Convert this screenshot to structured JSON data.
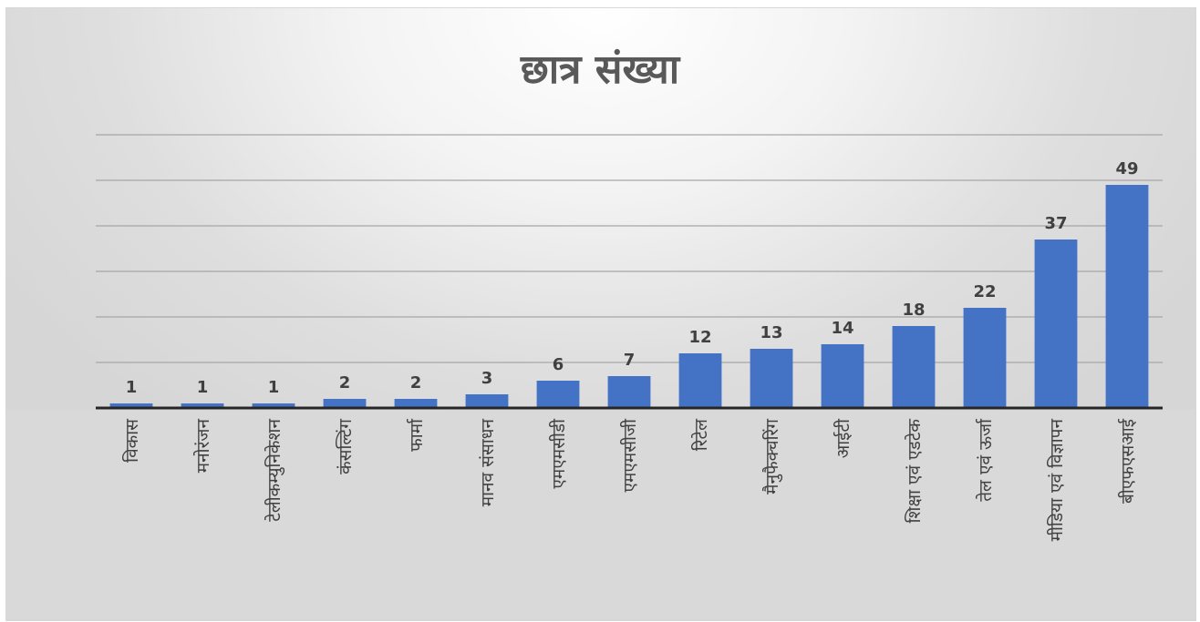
{
  "chart_data": {
    "type": "bar",
    "title": "छात्र संख्या",
    "categories": [
      "विकास",
      "मनोरंजन",
      "टेलीकम्युनिकेशन",
      "कंसल्टिंग",
      "फार्मा",
      "मानव संसाधन",
      "एमएमसीडी",
      "एमएमसीजी",
      "रिटेल",
      "मैनुफैक्चरिंग",
      "आईटी",
      "शिक्षा एवं एडटेक",
      "तेल एवं ऊर्जा",
      "मीडिया एवं विज्ञापन",
      "बीएफएसआई"
    ],
    "values": [
      1,
      1,
      1,
      2,
      2,
      3,
      6,
      7,
      12,
      13,
      14,
      18,
      22,
      37,
      49
    ],
    "ylim": [
      0,
      60
    ],
    "grid": true,
    "bar_color": "#4472C4",
    "data_labels": true,
    "xlabel": "",
    "ylabel": ""
  }
}
